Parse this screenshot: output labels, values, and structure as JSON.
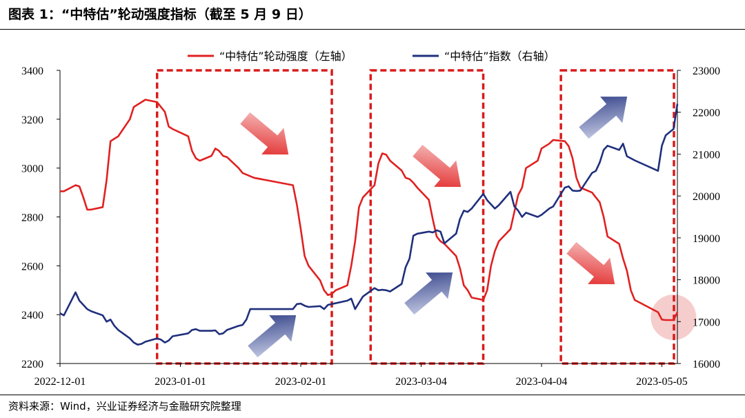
{
  "header": {
    "title": "图表 1：“中特估”轮动强度指标（截至 5 月 9 日）"
  },
  "footer": {
    "source": "资料来源：Wind，兴业证券经济与金融研究院整理"
  },
  "chart_data": {
    "type": "line",
    "title": "图表 1：“中特估”轮动强度指标（截至 5 月 9 日）",
    "x_range": [
      "2022-12-01",
      "2023-05-09"
    ],
    "x_tick_labels": [
      "2022-12-01",
      "2023-01-01",
      "2023-02-01",
      "2023-03-04",
      "2023-04-04",
      "2023-05-05"
    ],
    "y_left": {
      "ticks": [
        2200,
        2400,
        2600,
        2800,
        3000,
        3200,
        3400
      ],
      "ylim": [
        2200,
        3400
      ]
    },
    "y_right": {
      "ticks": [
        16000,
        17000,
        18000,
        19000,
        20000,
        21000,
        22000,
        23000
      ],
      "ylim": [
        16000,
        23000
      ]
    },
    "legend": {
      "position": "top-center"
    },
    "grid": false,
    "series": [
      {
        "name": "“中特估”轮动强度（左轴）",
        "axis": "left",
        "color": "#e02020",
        "points": [
          [
            "2022-12-01",
            2905
          ],
          [
            "2022-12-02",
            2905
          ],
          [
            "2022-12-05",
            2930
          ],
          [
            "2022-12-06",
            2925
          ],
          [
            "2022-12-07",
            2880
          ],
          [
            "2022-12-08",
            2830
          ],
          [
            "2022-12-09",
            2830
          ],
          [
            "2022-12-12",
            2840
          ],
          [
            "2022-12-13",
            2950
          ],
          [
            "2022-12-14",
            3110
          ],
          [
            "2022-12-16",
            3130
          ],
          [
            "2022-12-19",
            3200
          ],
          [
            "2022-12-20",
            3250
          ],
          [
            "2022-12-23",
            3280
          ],
          [
            "2022-12-26",
            3270
          ],
          [
            "2022-12-28",
            3230
          ],
          [
            "2022-12-29",
            3170
          ],
          [
            "2022-12-30",
            3160
          ],
          [
            "2023-01-03",
            3130
          ],
          [
            "2023-01-04",
            3070
          ],
          [
            "2023-01-05",
            3040
          ],
          [
            "2023-01-06",
            3030
          ],
          [
            "2023-01-09",
            3050
          ],
          [
            "2023-01-10",
            3080
          ],
          [
            "2023-01-11",
            3070
          ],
          [
            "2023-01-12",
            3050
          ],
          [
            "2023-01-13",
            3045
          ],
          [
            "2023-01-16",
            3000
          ],
          [
            "2023-01-17",
            2980
          ],
          [
            "2023-01-20",
            2960
          ],
          [
            "2023-01-30",
            2930
          ],
          [
            "2023-01-31",
            2850
          ],
          [
            "2023-02-01",
            2750
          ],
          [
            "2023-02-02",
            2640
          ],
          [
            "2023-02-03",
            2600
          ],
          [
            "2023-02-06",
            2540
          ],
          [
            "2023-02-07",
            2500
          ],
          [
            "2023-02-08",
            2480
          ],
          [
            "2023-02-09",
            2485
          ],
          [
            "2023-02-10",
            2500
          ],
          [
            "2023-02-13",
            2520
          ],
          [
            "2023-02-14",
            2600
          ],
          [
            "2023-02-15",
            2700
          ],
          [
            "2023-02-16",
            2840
          ],
          [
            "2023-02-17",
            2880
          ],
          [
            "2023-02-20",
            2930
          ],
          [
            "2023-02-21",
            3020
          ],
          [
            "2023-02-22",
            3060
          ],
          [
            "2023-02-23",
            3055
          ],
          [
            "2023-02-24",
            3030
          ],
          [
            "2023-02-27",
            2990
          ],
          [
            "2023-02-28",
            2960
          ],
          [
            "2023-03-01",
            2955
          ],
          [
            "2023-03-02",
            2940
          ],
          [
            "2023-03-03",
            2920
          ],
          [
            "2023-03-06",
            2870
          ],
          [
            "2023-03-07",
            2790
          ],
          [
            "2023-03-08",
            2720
          ],
          [
            "2023-03-09",
            2700
          ],
          [
            "2023-03-10",
            2690
          ],
          [
            "2023-03-13",
            2640
          ],
          [
            "2023-03-14",
            2590
          ],
          [
            "2023-03-15",
            2520
          ],
          [
            "2023-03-16",
            2500
          ],
          [
            "2023-03-17",
            2470
          ],
          [
            "2023-03-20",
            2460
          ],
          [
            "2023-03-21",
            2500
          ],
          [
            "2023-03-22",
            2600
          ],
          [
            "2023-03-23",
            2660
          ],
          [
            "2023-03-24",
            2700
          ],
          [
            "2023-03-27",
            2750
          ],
          [
            "2023-03-28",
            2820
          ],
          [
            "2023-03-29",
            2890
          ],
          [
            "2023-03-30",
            2920
          ],
          [
            "2023-03-31",
            3000
          ],
          [
            "2023-04-03",
            3030
          ],
          [
            "2023-04-04",
            3080
          ],
          [
            "2023-04-06",
            3100
          ],
          [
            "2023-04-07",
            3115
          ],
          [
            "2023-04-10",
            3110
          ],
          [
            "2023-04-11",
            3090
          ],
          [
            "2023-04-12",
            3040
          ],
          [
            "2023-04-13",
            2960
          ],
          [
            "2023-04-14",
            2920
          ],
          [
            "2023-04-17",
            2900
          ],
          [
            "2023-04-18",
            2880
          ],
          [
            "2023-04-19",
            2860
          ],
          [
            "2023-04-20",
            2800
          ],
          [
            "2023-04-21",
            2720
          ],
          [
            "2023-04-24",
            2690
          ],
          [
            "2023-04-25",
            2630
          ],
          [
            "2023-04-26",
            2580
          ],
          [
            "2023-04-27",
            2500
          ],
          [
            "2023-04-28",
            2460
          ],
          [
            "2023-05-04",
            2410
          ],
          [
            "2023-05-05",
            2380
          ],
          [
            "2023-05-06",
            2378
          ],
          [
            "2023-05-08",
            2378
          ],
          [
            "2023-05-09",
            2410
          ]
        ]
      },
      {
        "name": "“中特估”指数（右轴）",
        "axis": "right",
        "color": "#1f2f7c",
        "points": [
          [
            "2022-12-01",
            17200
          ],
          [
            "2022-12-02",
            17150
          ],
          [
            "2022-12-05",
            17700
          ],
          [
            "2022-12-06",
            17500
          ],
          [
            "2022-12-07",
            17400
          ],
          [
            "2022-12-08",
            17300
          ],
          [
            "2022-12-09",
            17250
          ],
          [
            "2022-12-12",
            17150
          ],
          [
            "2022-12-13",
            17000
          ],
          [
            "2022-12-14",
            17050
          ],
          [
            "2022-12-15",
            16900
          ],
          [
            "2022-12-16",
            16800
          ],
          [
            "2022-12-19",
            16600
          ],
          [
            "2022-12-20",
            16500
          ],
          [
            "2022-12-21",
            16450
          ],
          [
            "2022-12-22",
            16470
          ],
          [
            "2022-12-23",
            16520
          ],
          [
            "2022-12-26",
            16600
          ],
          [
            "2022-12-27",
            16570
          ],
          [
            "2022-12-28",
            16500
          ],
          [
            "2022-12-29",
            16550
          ],
          [
            "2022-12-30",
            16650
          ],
          [
            "2023-01-03",
            16720
          ],
          [
            "2023-01-04",
            16800
          ],
          [
            "2023-01-05",
            16820
          ],
          [
            "2023-01-06",
            16780
          ],
          [
            "2023-01-09",
            16780
          ],
          [
            "2023-01-10",
            16790
          ],
          [
            "2023-01-11",
            16700
          ],
          [
            "2023-01-12",
            16720
          ],
          [
            "2023-01-13",
            16800
          ],
          [
            "2023-01-16",
            16900
          ],
          [
            "2023-01-17",
            16920
          ],
          [
            "2023-01-18",
            17050
          ],
          [
            "2023-01-19",
            17300
          ],
          [
            "2023-01-20",
            17300
          ],
          [
            "2023-01-30",
            17300
          ],
          [
            "2023-01-31",
            17420
          ],
          [
            "2023-02-01",
            17430
          ],
          [
            "2023-02-02",
            17380
          ],
          [
            "2023-02-03",
            17350
          ],
          [
            "2023-02-06",
            17370
          ],
          [
            "2023-02-07",
            17300
          ],
          [
            "2023-02-08",
            17400
          ],
          [
            "2023-02-09",
            17420
          ],
          [
            "2023-02-13",
            17500
          ],
          [
            "2023-02-14",
            17550
          ],
          [
            "2023-02-15",
            17300
          ],
          [
            "2023-02-16",
            17450
          ],
          [
            "2023-02-17",
            17600
          ],
          [
            "2023-02-20",
            17800
          ],
          [
            "2023-02-21",
            17750
          ],
          [
            "2023-02-22",
            17760
          ],
          [
            "2023-02-23",
            17750
          ],
          [
            "2023-02-24",
            17720
          ],
          [
            "2023-02-27",
            17900
          ],
          [
            "2023-02-28",
            18300
          ],
          [
            "2023-03-01",
            18500
          ],
          [
            "2023-03-02",
            19050
          ],
          [
            "2023-03-03",
            19100
          ],
          [
            "2023-03-06",
            19150
          ],
          [
            "2023-03-07",
            19130
          ],
          [
            "2023-03-08",
            19180
          ],
          [
            "2023-03-09",
            19150
          ],
          [
            "2023-03-10",
            18870
          ],
          [
            "2023-03-13",
            19100
          ],
          [
            "2023-03-14",
            19450
          ],
          [
            "2023-03-15",
            19650
          ],
          [
            "2023-03-16",
            19620
          ],
          [
            "2023-03-17",
            19700
          ],
          [
            "2023-03-20",
            20050
          ],
          [
            "2023-03-21",
            19900
          ],
          [
            "2023-03-22",
            19800
          ],
          [
            "2023-03-23",
            19700
          ],
          [
            "2023-03-24",
            19780
          ],
          [
            "2023-03-27",
            20100
          ],
          [
            "2023-03-28",
            19750
          ],
          [
            "2023-03-29",
            19650
          ],
          [
            "2023-03-30",
            19500
          ],
          [
            "2023-03-31",
            19600
          ],
          [
            "2023-04-03",
            19500
          ],
          [
            "2023-04-04",
            19550
          ],
          [
            "2023-04-06",
            19700
          ],
          [
            "2023-04-07",
            19750
          ],
          [
            "2023-04-10",
            20200
          ],
          [
            "2023-04-11",
            20230
          ],
          [
            "2023-04-12",
            20130
          ],
          [
            "2023-04-13",
            20120
          ],
          [
            "2023-04-14",
            20130
          ],
          [
            "2023-04-17",
            20550
          ],
          [
            "2023-04-18",
            20600
          ],
          [
            "2023-04-19",
            20800
          ],
          [
            "2023-04-20",
            21100
          ],
          [
            "2023-04-21",
            21200
          ],
          [
            "2023-04-24",
            21100
          ],
          [
            "2023-04-25",
            21250
          ],
          [
            "2023-04-26",
            20950
          ],
          [
            "2023-04-27",
            20900
          ],
          [
            "2023-04-28",
            20850
          ],
          [
            "2023-05-04",
            20600
          ],
          [
            "2023-05-05",
            21200
          ],
          [
            "2023-05-06",
            21450
          ],
          [
            "2023-05-08",
            21600
          ],
          [
            "2023-05-09",
            22200
          ]
        ]
      }
    ],
    "shaded_periods": [
      [
        "2022-12-26",
        "2023-02-09"
      ],
      [
        "2023-02-19",
        "2023-03-20"
      ],
      [
        "2023-04-09",
        "2023-05-09"
      ]
    ]
  },
  "colors": {
    "red_series": "#e02020",
    "blue_series": "#1f2f7c",
    "dashed_box": "#d81b1b",
    "highlight": "#f4c4c4"
  }
}
